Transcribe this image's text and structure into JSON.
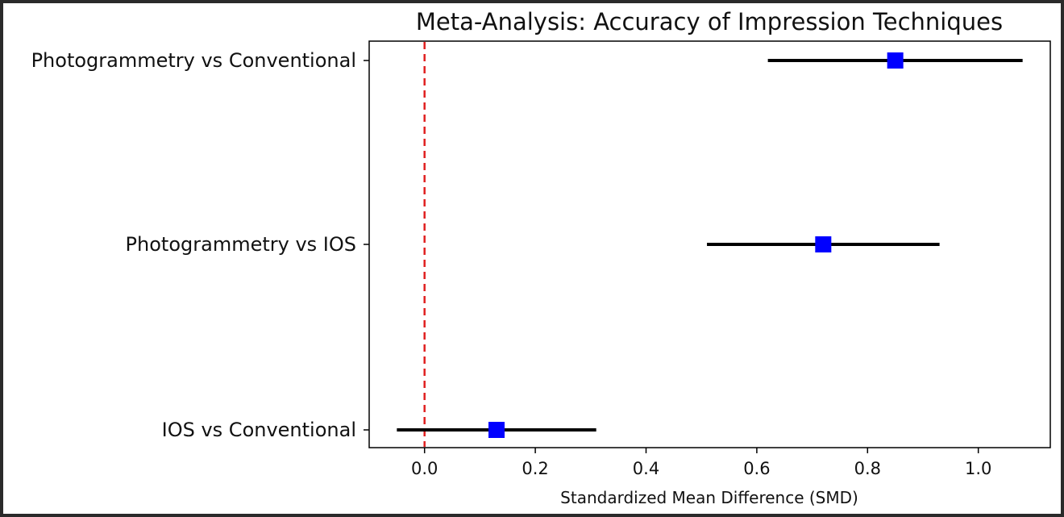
{
  "chart_data": {
    "type": "forest",
    "title": "Meta-Analysis: Accuracy of Impression Techniques",
    "xlabel": "Standardized Mean Difference (SMD)",
    "ylabel": "",
    "xlim": [
      -0.1,
      1.13
    ],
    "x_ticks": [
      0.0,
      0.2,
      0.4,
      0.6,
      0.8,
      1.0
    ],
    "x_tick_labels": [
      "0.0",
      "0.2",
      "0.4",
      "0.6",
      "0.8",
      "1.0"
    ],
    "reference_line": {
      "x": 0.0,
      "style": "dashed",
      "color": "#e02020"
    },
    "grid": false,
    "comparisons": [
      {
        "label": "Photogrammetry vs Conventional",
        "smd": 0.85,
        "ci_low": 0.62,
        "ci_high": 1.08
      },
      {
        "label": "Photogrammetry vs IOS",
        "smd": 0.72,
        "ci_low": 0.51,
        "ci_high": 0.93
      },
      {
        "label": "IOS vs Conventional",
        "smd": 0.13,
        "ci_low": -0.05,
        "ci_high": 0.31
      }
    ],
    "marker_color": "#0000ff",
    "ci_color": "#000000"
  }
}
